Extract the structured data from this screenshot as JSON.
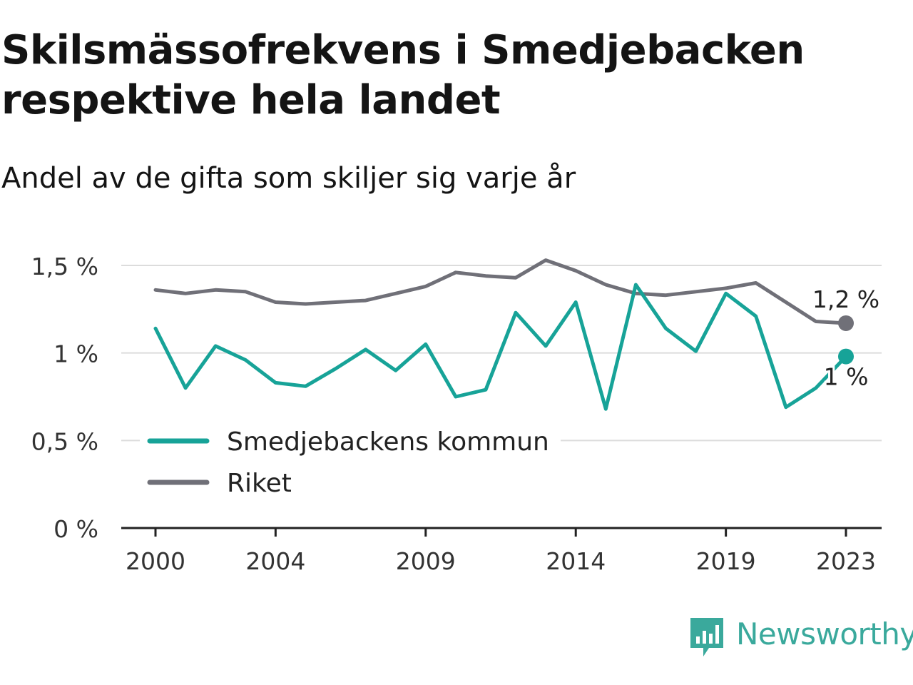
{
  "header": {
    "title": "Skilsmässofrekvens i Smedjebacken respektive hela landet",
    "subtitle": "Andel av de gifta som skiljer sig varje år"
  },
  "brand": {
    "name": "Newsworthy",
    "color": "#3aa99c",
    "icon": "newsworthy-logo-icon"
  },
  "chart_data": {
    "type": "line",
    "x": [
      2000,
      2001,
      2002,
      2003,
      2004,
      2005,
      2006,
      2007,
      2008,
      2009,
      2010,
      2011,
      2012,
      2013,
      2014,
      2015,
      2016,
      2017,
      2018,
      2019,
      2020,
      2021,
      2022,
      2023
    ],
    "x_ticks": [
      2000,
      2004,
      2009,
      2014,
      2019,
      2023
    ],
    "x_tick_labels": [
      "2000",
      "2004",
      "2009",
      "2014",
      "2019",
      "2023"
    ],
    "y_ticks": [
      0,
      0.5,
      1,
      1.5
    ],
    "y_tick_labels": [
      "0 %",
      "0,5 %",
      "1 %",
      "1,5 %"
    ],
    "ylim": [
      0,
      1.5
    ],
    "grid": true,
    "legend_position": "bottom-left",
    "series": [
      {
        "name": "Smedjebackens kommun",
        "color": "#17a398",
        "values": [
          1.14,
          0.8,
          1.04,
          0.96,
          0.83,
          0.81,
          0.91,
          1.02,
          0.9,
          1.05,
          0.75,
          0.79,
          1.23,
          1.04,
          1.29,
          0.68,
          1.39,
          1.14,
          1.01,
          1.34,
          1.21,
          0.69,
          0.8,
          0.98
        ],
        "end_label": "1 %"
      },
      {
        "name": "Riket",
        "color": "#707078",
        "values": [
          1.36,
          1.34,
          1.36,
          1.35,
          1.29,
          1.28,
          1.29,
          1.3,
          1.34,
          1.38,
          1.46,
          1.44,
          1.43,
          1.53,
          1.47,
          1.39,
          1.34,
          1.33,
          1.35,
          1.37,
          1.4,
          1.29,
          1.18,
          1.17
        ],
        "end_label": "1,2 %"
      }
    ]
  }
}
